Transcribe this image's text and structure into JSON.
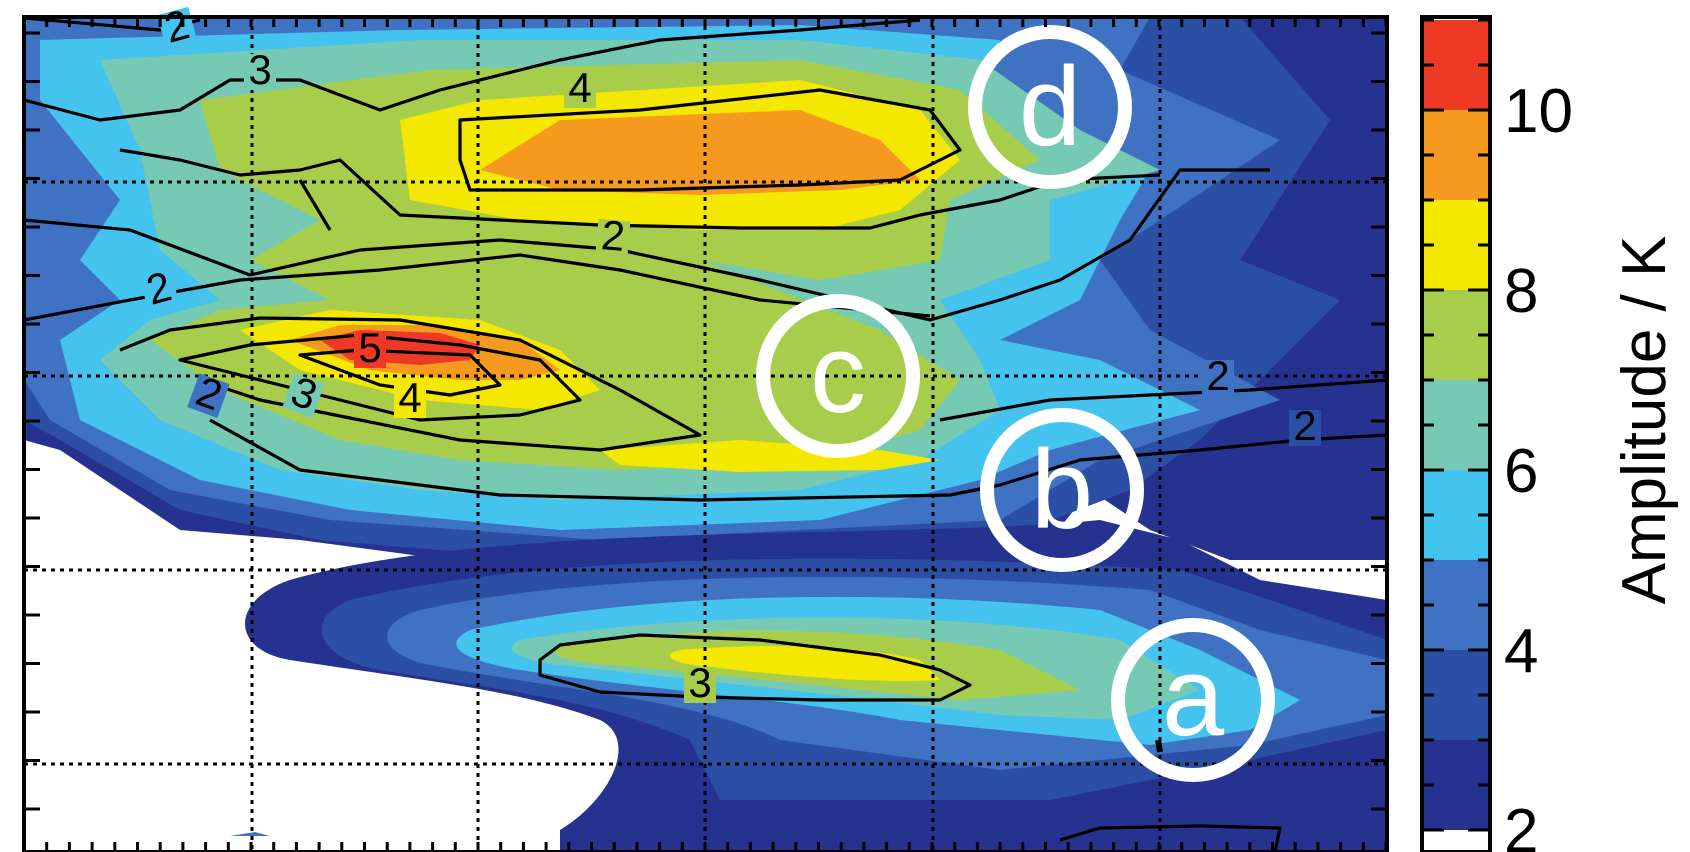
{
  "chart_data": {
    "type": "heatmap",
    "colorbar": {
      "title": "Amplitude / K",
      "tick_labels": [
        "2",
        "4",
        "6",
        "8",
        "10"
      ],
      "levels": [
        2,
        3,
        4,
        5,
        6,
        7,
        8,
        9,
        10,
        11
      ],
      "colors": [
        "#26328f",
        "#2c4fa6",
        "#3f72c2",
        "#45c3ef",
        "#76c9b2",
        "#a7cd4a",
        "#f5e800",
        "#f59a1e",
        "#ee3a24"
      ]
    },
    "grid": true,
    "contour_labels": [
      "2",
      "2",
      "2",
      "2",
      "2",
      "2",
      "3",
      "3",
      "3",
      "4",
      "4",
      "5"
    ],
    "markers": [
      "a",
      "b",
      "c",
      "d"
    ]
  }
}
